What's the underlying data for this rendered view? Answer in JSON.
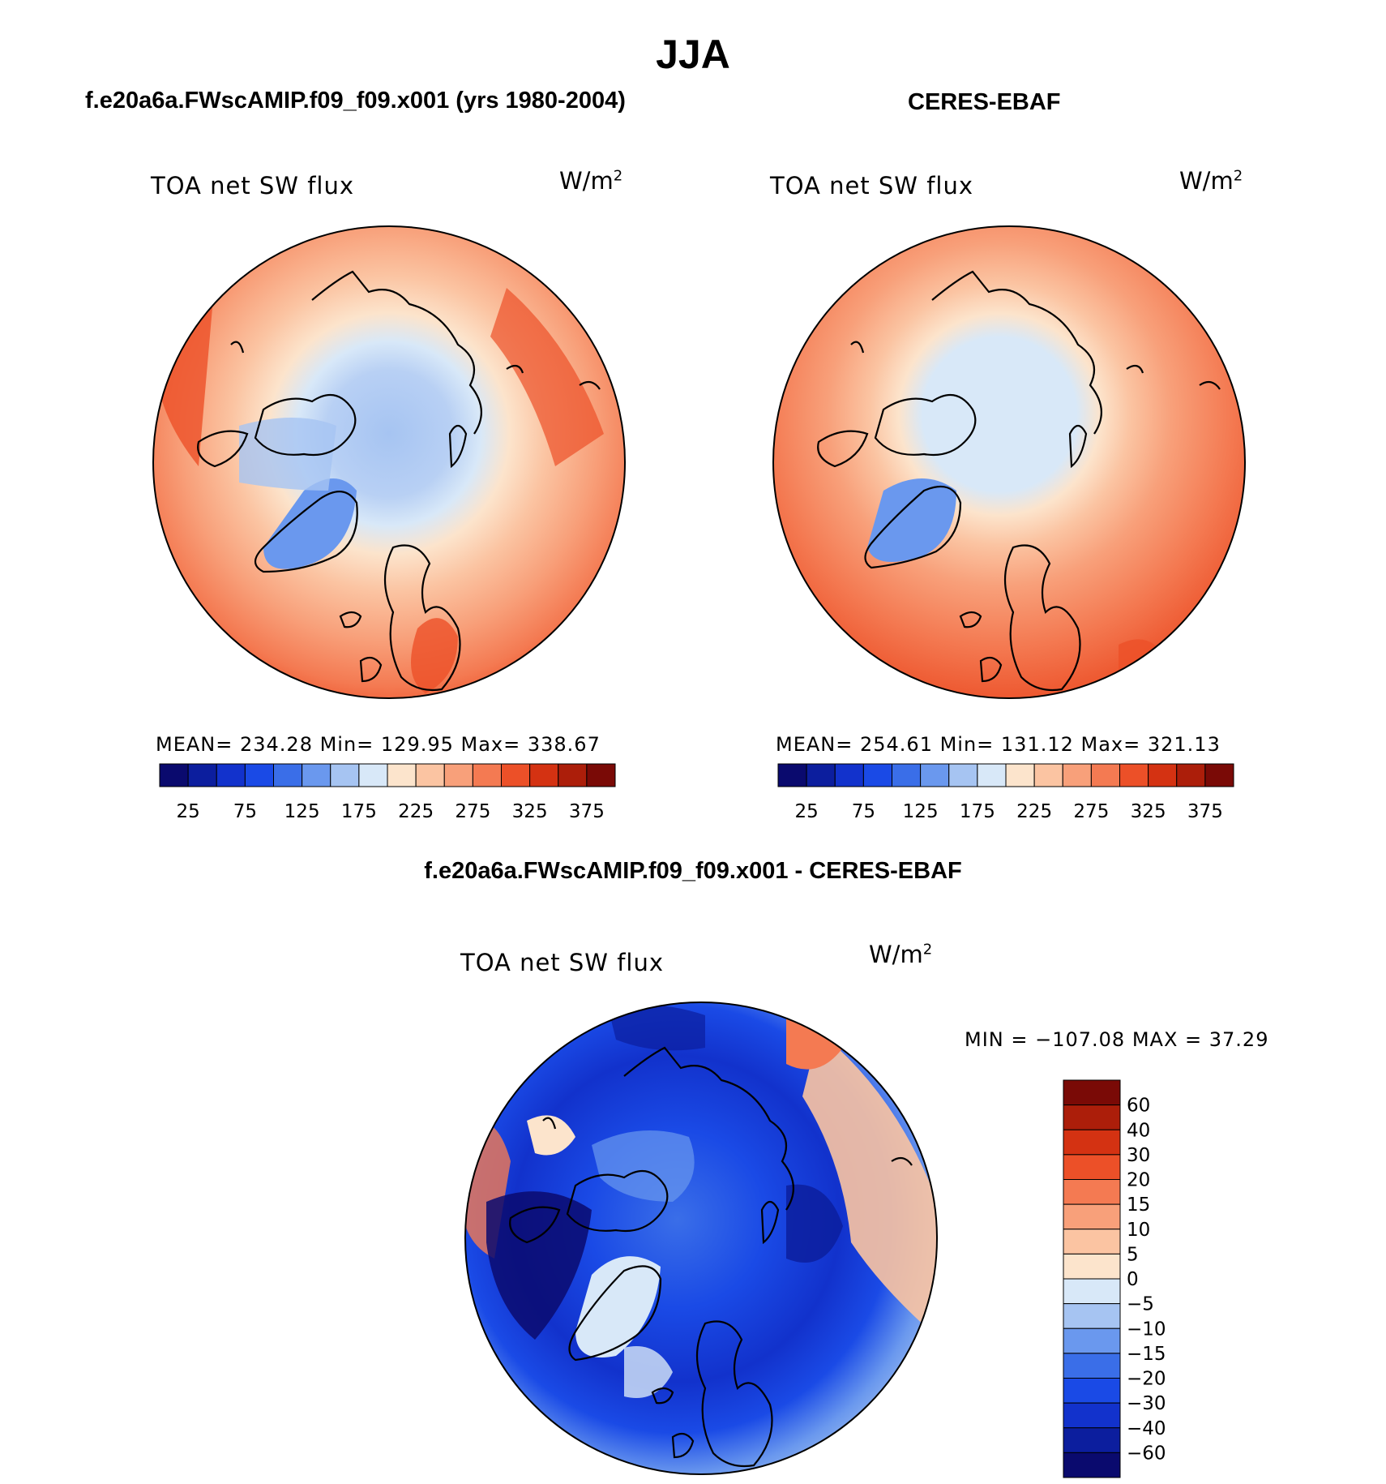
{
  "title": "JJA",
  "left_panel": {
    "subtitle": "f.e20a6a.FWscAMIP.f09_f09.x001 (yrs 1980-2004)",
    "variable": "TOA net SW flux",
    "units_base": "W/m",
    "units_exp": "2",
    "stats": "MEAN= 234.28   Min= 129.95   Max= 338.67"
  },
  "right_panel": {
    "subtitle": "CERES-EBAF",
    "variable": "TOA net SW flux",
    "units_base": "W/m",
    "units_exp": "2",
    "stats": "MEAN= 254.61   Min= 131.12   Max= 321.13"
  },
  "diff_panel": {
    "subtitle": "f.e20a6a.FWscAMIP.f09_f09.x001 - CERES-EBAF",
    "variable": "TOA net SW flux",
    "units_base": "W/m",
    "units_exp": "2",
    "minmax": "MIN = −107.08  MAX =   37.29"
  },
  "chart_data": [
    {
      "type": "heatmap",
      "projection": "north-polar-stereographic",
      "title": "f.e20a6a.FWscAMIP.f09_f09.x001 (yrs 1980-2004)",
      "variable": "TOA net SW flux",
      "units": "W/m2",
      "mean": 234.28,
      "min": 129.95,
      "max": 338.67,
      "colorbar": {
        "tick_labels": [
          "25",
          "75",
          "125",
          "175",
          "225",
          "275",
          "325",
          "375"
        ],
        "levels": [
          25,
          50,
          75,
          100,
          125,
          150,
          175,
          200,
          225,
          250,
          275,
          300,
          325,
          350,
          375
        ],
        "colors": [
          "#0a0a6e",
          "#0c1e9e",
          "#1232cc",
          "#1a4ae6",
          "#3a6ee8",
          "#6a98ee",
          "#a6c4f2",
          "#d8e8f8",
          "#fce4cc",
          "#fbc4a2",
          "#f8a07a",
          "#f47a52",
          "#ec5028",
          "#d43212",
          "#ac1e0a",
          "#7a0a06"
        ]
      }
    },
    {
      "type": "heatmap",
      "projection": "north-polar-stereographic",
      "title": "CERES-EBAF",
      "variable": "TOA net SW flux",
      "units": "W/m2",
      "mean": 254.61,
      "min": 131.12,
      "max": 321.13,
      "colorbar": {
        "tick_labels": [
          "25",
          "75",
          "125",
          "175",
          "225",
          "275",
          "325",
          "375"
        ],
        "levels": [
          25,
          50,
          75,
          100,
          125,
          150,
          175,
          200,
          225,
          250,
          275,
          300,
          325,
          350,
          375
        ],
        "colors": [
          "#0a0a6e",
          "#0c1e9e",
          "#1232cc",
          "#1a4ae6",
          "#3a6ee8",
          "#6a98ee",
          "#a6c4f2",
          "#d8e8f8",
          "#fce4cc",
          "#fbc4a2",
          "#f8a07a",
          "#f47a52",
          "#ec5028",
          "#d43212",
          "#ac1e0a",
          "#7a0a06"
        ]
      }
    },
    {
      "type": "heatmap",
      "projection": "north-polar-stereographic",
      "title": "f.e20a6a.FWscAMIP.f09_f09.x001 - CERES-EBAF",
      "variable": "TOA net SW flux",
      "units": "W/m2",
      "min": -107.08,
      "max": 37.29,
      "colorbar": {
        "orientation": "vertical",
        "tick_labels": [
          "60",
          "40",
          "30",
          "20",
          "15",
          "10",
          "5",
          "0",
          "−5",
          "−10",
          "−15",
          "−20",
          "−30",
          "−40",
          "−60"
        ],
        "colors": [
          "#7a0a06",
          "#ac1e0a",
          "#d43212",
          "#ec5028",
          "#f47a52",
          "#f8a07a",
          "#fbc4a2",
          "#fce4cc",
          "#d8e8f8",
          "#a6c4f2",
          "#6a98ee",
          "#3a6ee8",
          "#1a4ae6",
          "#1232cc",
          "#0c1e9e",
          "#0a0a6e"
        ]
      }
    }
  ]
}
